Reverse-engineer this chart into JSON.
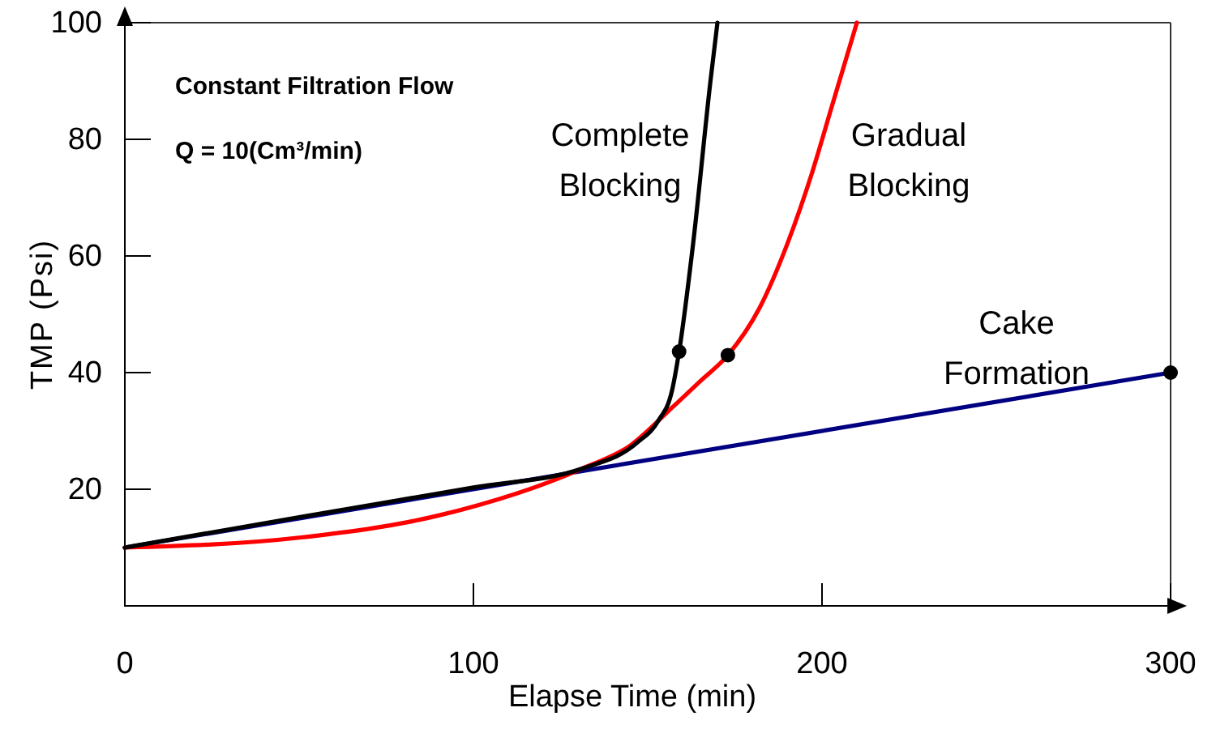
{
  "chart_data": {
    "type": "line",
    "xlabel": "Elapse Time (min)",
    "ylabel": "TMP (Psi)",
    "xlim": [
      0,
      300
    ],
    "xticks": [
      0,
      100,
      200,
      300
    ],
    "ylim": [
      0,
      100
    ],
    "yticks": [
      20,
      40,
      60,
      80,
      100
    ],
    "annotations": [
      "Constant Filtration Flow",
      "Q = 10(Cm³/min)"
    ],
    "series": [
      {
        "name": "Cake Formation",
        "color": "#000080",
        "x": [
          0,
          300
        ],
        "values": [
          10,
          40
        ]
      },
      {
        "name": "Gradual Blocking",
        "color": "#ff0000",
        "x": [
          0,
          50,
          90,
          131,
          145,
          157,
          165,
          173,
          182,
          190,
          197,
          203,
          210
        ],
        "values": [
          10,
          11.7,
          15.5,
          23.5,
          27.5,
          34,
          38.5,
          43,
          51,
          62,
          74,
          86,
          100
        ]
      },
      {
        "name": "Complete Blocking",
        "color": "#000000",
        "x": [
          0,
          50,
          100,
          131,
          147,
          153,
          157,
          159,
          163,
          168,
          170
        ],
        "values": [
          10,
          15.2,
          20.3,
          23.5,
          28,
          31.7,
          37,
          43.6,
          62,
          90,
          100
        ]
      },
      {
        "type": "scatter",
        "color": "#000000",
        "x": [
          159,
          173,
          300
        ],
        "values": [
          43.6,
          43,
          40
        ]
      }
    ]
  }
}
